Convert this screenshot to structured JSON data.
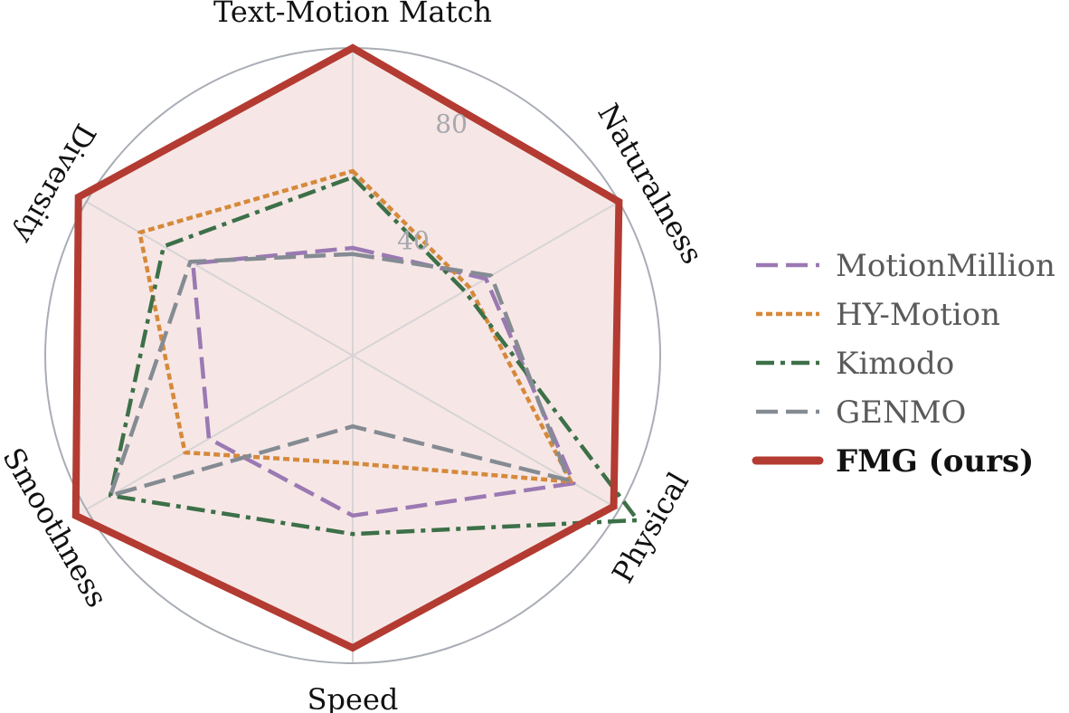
{
  "chart_data": {
    "type": "radar",
    "axes": [
      "Text-Motion Match",
      "Naturalness",
      "Physical",
      "Smoothness",
      "Speed",
      "Diversity"
    ],
    "axes_order_clockwise_from_top": [
      "Text-Motion Match",
      "Naturalness",
      "Physical",
      "Speed",
      "Smoothness",
      "Diversity"
    ],
    "rlim": [
      0,
      100
    ],
    "rticks": [
      40,
      80
    ],
    "rtick_labels": [
      "40",
      "80"
    ],
    "grid": true,
    "legend_position": "right",
    "series": [
      {
        "name": "MotionMillion",
        "style": "dashed",
        "color": "#9b79b3",
        "values": {
          "Text-Motion Match": 35,
          "Naturalness": 50,
          "Physical": 83,
          "Speed": 52,
          "Smoothness": 54,
          "Diversity": 60
        }
      },
      {
        "name": "HY-Motion",
        "style": "dotted",
        "color": "#d6893b",
        "values": {
          "Text-Motion Match": 60,
          "Naturalness": 44,
          "Physical": 82,
          "Speed": 35,
          "Smoothness": 63,
          "Diversity": 80
        }
      },
      {
        "name": "Kimodo",
        "style": "dashdot",
        "color": "#3d7048",
        "values": {
          "Text-Motion Match": 58,
          "Naturalness": 42,
          "Physical": 107,
          "Speed": 58,
          "Smoothness": 91,
          "Diversity": 71
        }
      },
      {
        "name": "GENMO",
        "style": "dashed",
        "color": "#858b93",
        "values": {
          "Text-Motion Match": 33,
          "Naturalness": 52,
          "Physical": 81,
          "Speed": 23,
          "Smoothness": 91,
          "Diversity": 61
        }
      },
      {
        "name": "FMG (ours)",
        "style": "solid",
        "color": "#b33b32",
        "bold": true,
        "values": {
          "Text-Motion Match": 100,
          "Naturalness": 100,
          "Physical": 98,
          "Speed": 95,
          "Smoothness": 104,
          "Diversity": 103
        }
      }
    ]
  }
}
